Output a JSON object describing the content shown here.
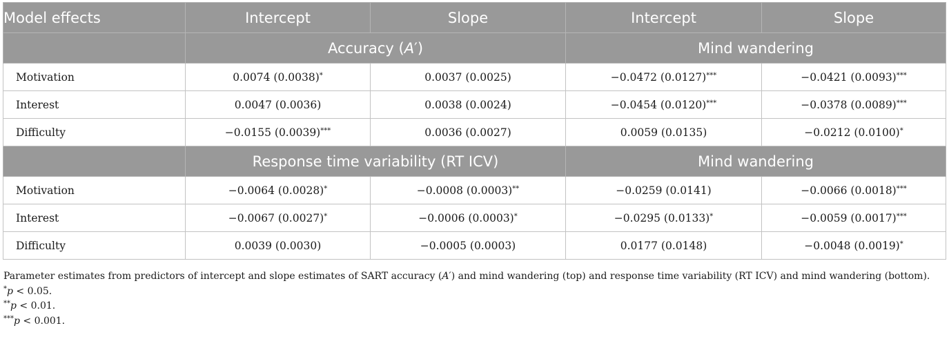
{
  "header": {
    "model_effects": "Model effects",
    "col1": "Intercept",
    "col2": "Slope",
    "col3": "Intercept",
    "col4": "Slope"
  },
  "section1": {
    "group_left": "Accuracy (A′)",
    "group_right": "Mind wandering",
    "rows": [
      {
        "label": "Motivation",
        "c1": "0.0074 (0.0038)",
        "c1s": "*",
        "c2": "0.0037 (0.0025)",
        "c2s": "",
        "c3": "−0.0472 (0.0127)",
        "c3s": "***",
        "c4": "−0.0421 (0.0093)",
        "c4s": "***"
      },
      {
        "label": "Interest",
        "c1": "0.0047 (0.0036)",
        "c1s": "",
        "c2": "0.0038 (0.0024)",
        "c2s": "",
        "c3": "−0.0454 (0.0120)",
        "c3s": "***",
        "c4": "−0.0378 (0.0089)",
        "c4s": "***"
      },
      {
        "label": "Difficulty",
        "c1": "−0.0155 (0.0039)",
        "c1s": "***",
        "c2": "0.0036 (0.0027)",
        "c2s": "",
        "c3": "0.0059 (0.0135)",
        "c3s": "",
        "c4": "−0.0212 (0.0100)",
        "c4s": "*"
      }
    ]
  },
  "section2": {
    "group_left": "Response time variability (RT ICV)",
    "group_right": "Mind wandering",
    "rows": [
      {
        "label": "Motivation",
        "c1": "−0.0064 (0.0028)",
        "c1s": "*",
        "c2": "−0.0008 (0.0003)",
        "c2s": "**",
        "c3": "−0.0259 (0.0141)",
        "c3s": "",
        "c4": "−0.0066 (0.0018)",
        "c4s": "***"
      },
      {
        "label": "Interest",
        "c1": "−0.0067 (0.0027)",
        "c1s": "*",
        "c2": "−0.0006 (0.0003)",
        "c2s": "*",
        "c3": "−0.0295 (0.0133)",
        "c3s": "*",
        "c4": "−0.0059 (0.0017)",
        "c4s": "***"
      },
      {
        "label": "Difficulty",
        "c1": "0.0039 (0.0030)",
        "c1s": "",
        "c2": "−0.0005 (0.0003)",
        "c2s": "",
        "c3": "0.0177 (0.0148)",
        "c3s": "",
        "c4": "−0.0048 (0.0019)",
        "c4s": "*"
      }
    ]
  },
  "notes": {
    "caption": "Parameter estimates from predictors of intercept and slope estimates of SART accuracy (A′) and mind wandering (top) and response time variability (RT ICV) and mind wandering (bottom).",
    "n1_mark": "*",
    "n1_p": "p",
    "n1_text": " < 0.05.",
    "n2_mark": "**",
    "n2_p": "p",
    "n2_text": " < 0.01.",
    "n3_mark": "***",
    "n3_p": "p",
    "n3_text": " < 0.001."
  }
}
